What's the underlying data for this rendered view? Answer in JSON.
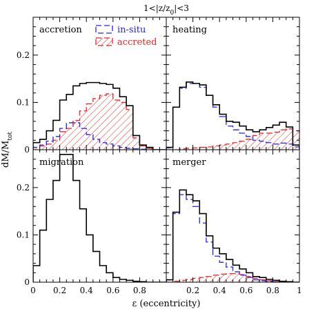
{
  "figure": {
    "title": "1<|z/z",
    "title_sub": "0",
    "title_end": "|<3",
    "xlabel": "ε (eccentricity)",
    "ylabel": "dM/M",
    "ylabel_sub": "tot"
  },
  "legend": {
    "insitu": "in-situ",
    "accreted": "accreted",
    "insitu_color": "#2222ee",
    "accreted_color": "#ee2222"
  },
  "xticks": [
    "0",
    "0.2",
    "0.4",
    "0.6",
    "0.8",
    "1"
  ],
  "yticks": [
    "0",
    "0.1",
    "0.2"
  ],
  "chart_data": [
    {
      "type": "bar",
      "title": "accretion",
      "bin_edges": [
        0,
        0.05,
        0.1,
        0.15,
        0.2,
        0.25,
        0.3,
        0.35,
        0.4,
        0.45,
        0.5,
        0.55,
        0.6,
        0.65,
        0.7,
        0.75,
        0.8,
        0.85,
        0.9,
        0.95,
        1.0
      ],
      "xlim": [
        0,
        1
      ],
      "ylim": [
        0,
        0.28
      ],
      "series": [
        {
          "name": "",
          "style": "total",
          "values": [
            0.015,
            0.022,
            0.04,
            0.062,
            0.105,
            0.117,
            0.135,
            0.14,
            0.142,
            0.142,
            0.14,
            0.138,
            0.13,
            0.112,
            0.093,
            0.03,
            0.01,
            0.005,
            0.0,
            0.0
          ]
        },
        {
          "name": "in-situ",
          "style": "insitu",
          "values": [
            0.005,
            0.01,
            0.018,
            0.028,
            0.045,
            0.057,
            0.057,
            0.045,
            0.032,
            0.022,
            0.015,
            0.012,
            0.008,
            0.005,
            0.003,
            0.002,
            0.001,
            0.0,
            0.0,
            0.0
          ]
        },
        {
          "name": "accreted",
          "style": "accreted",
          "values": [
            0.005,
            0.008,
            0.012,
            0.02,
            0.038,
            0.045,
            0.062,
            0.082,
            0.097,
            0.108,
            0.115,
            0.118,
            0.105,
            0.1,
            0.085,
            0.025,
            0.008,
            0.003,
            0.0,
            0.0
          ]
        }
      ]
    },
    {
      "type": "bar",
      "title": "heating",
      "bin_edges": [
        0,
        0.05,
        0.1,
        0.15,
        0.2,
        0.25,
        0.3,
        0.35,
        0.4,
        0.45,
        0.5,
        0.55,
        0.6,
        0.65,
        0.7,
        0.75,
        0.8,
        0.85,
        0.9,
        0.95,
        1.0
      ],
      "xlim": [
        0,
        1
      ],
      "ylim": [
        0,
        0.28
      ],
      "series": [
        {
          "name": "",
          "style": "total",
          "values": [
            0.005,
            0.09,
            0.132,
            0.143,
            0.14,
            0.137,
            0.115,
            0.095,
            0.075,
            0.06,
            0.058,
            0.05,
            0.042,
            0.038,
            0.042,
            0.047,
            0.052,
            0.058,
            0.048,
            0.01
          ]
        },
        {
          "name": "in-situ",
          "style": "insitu",
          "values": [
            0.004,
            0.09,
            0.13,
            0.14,
            0.14,
            0.132,
            0.115,
            0.09,
            0.07,
            0.05,
            0.042,
            0.035,
            0.028,
            0.02,
            0.018,
            0.015,
            0.012,
            0.014,
            0.012,
            0.006
          ]
        },
        {
          "name": "accreted",
          "style": "accreted",
          "values": [
            0.0,
            0.0,
            0.002,
            0.003,
            0.004,
            0.005,
            0.006,
            0.008,
            0.01,
            0.012,
            0.015,
            0.018,
            0.022,
            0.03,
            0.035,
            0.035,
            0.037,
            0.042,
            0.044,
            0.04
          ]
        }
      ]
    },
    {
      "type": "bar",
      "title": "migration",
      "bin_edges": [
        0,
        0.05,
        0.1,
        0.15,
        0.2,
        0.25,
        0.3,
        0.35,
        0.4,
        0.45,
        0.5,
        0.55,
        0.6,
        0.65,
        0.7,
        0.75,
        0.8,
        0.85,
        0.9,
        0.95,
        1.0
      ],
      "xlim": [
        0,
        1
      ],
      "ylim": [
        0,
        0.28
      ],
      "series": [
        {
          "name": "",
          "style": "total",
          "values": [
            0.035,
            0.11,
            0.175,
            0.215,
            0.27,
            0.27,
            0.215,
            0.155,
            0.1,
            0.065,
            0.035,
            0.02,
            0.01,
            0.006,
            0.004,
            0.002,
            0.001,
            0.0,
            0.0,
            0.0
          ]
        }
      ]
    },
    {
      "type": "bar",
      "title": "merger",
      "bin_edges": [
        0,
        0.05,
        0.1,
        0.15,
        0.2,
        0.25,
        0.3,
        0.35,
        0.4,
        0.45,
        0.5,
        0.55,
        0.6,
        0.65,
        0.7,
        0.75,
        0.8,
        0.85,
        0.9,
        0.95,
        1.0
      ],
      "xlim": [
        0,
        1
      ],
      "ylim": [
        0,
        0.28
      ],
      "series": [
        {
          "name": "",
          "style": "total",
          "values": [
            0.005,
            0.148,
            0.195,
            0.185,
            0.172,
            0.145,
            0.098,
            0.072,
            0.06,
            0.048,
            0.036,
            0.028,
            0.02,
            0.012,
            0.01,
            0.006,
            0.004,
            0.002,
            0.001,
            0.0
          ]
        },
        {
          "name": "in-situ",
          "style": "insitu",
          "values": [
            0.005,
            0.145,
            0.185,
            0.175,
            0.16,
            0.125,
            0.085,
            0.055,
            0.042,
            0.032,
            0.022,
            0.015,
            0.01,
            0.005,
            0.003,
            0.002,
            0.001,
            0.0,
            0.0,
            0.0
          ]
        },
        {
          "name": "accreted",
          "style": "accreted",
          "values": [
            0.0,
            0.002,
            0.004,
            0.006,
            0.008,
            0.01,
            0.012,
            0.015,
            0.017,
            0.018,
            0.018,
            0.016,
            0.012,
            0.008,
            0.005,
            0.003,
            0.002,
            0.001,
            0.0,
            0.0
          ]
        }
      ]
    }
  ]
}
